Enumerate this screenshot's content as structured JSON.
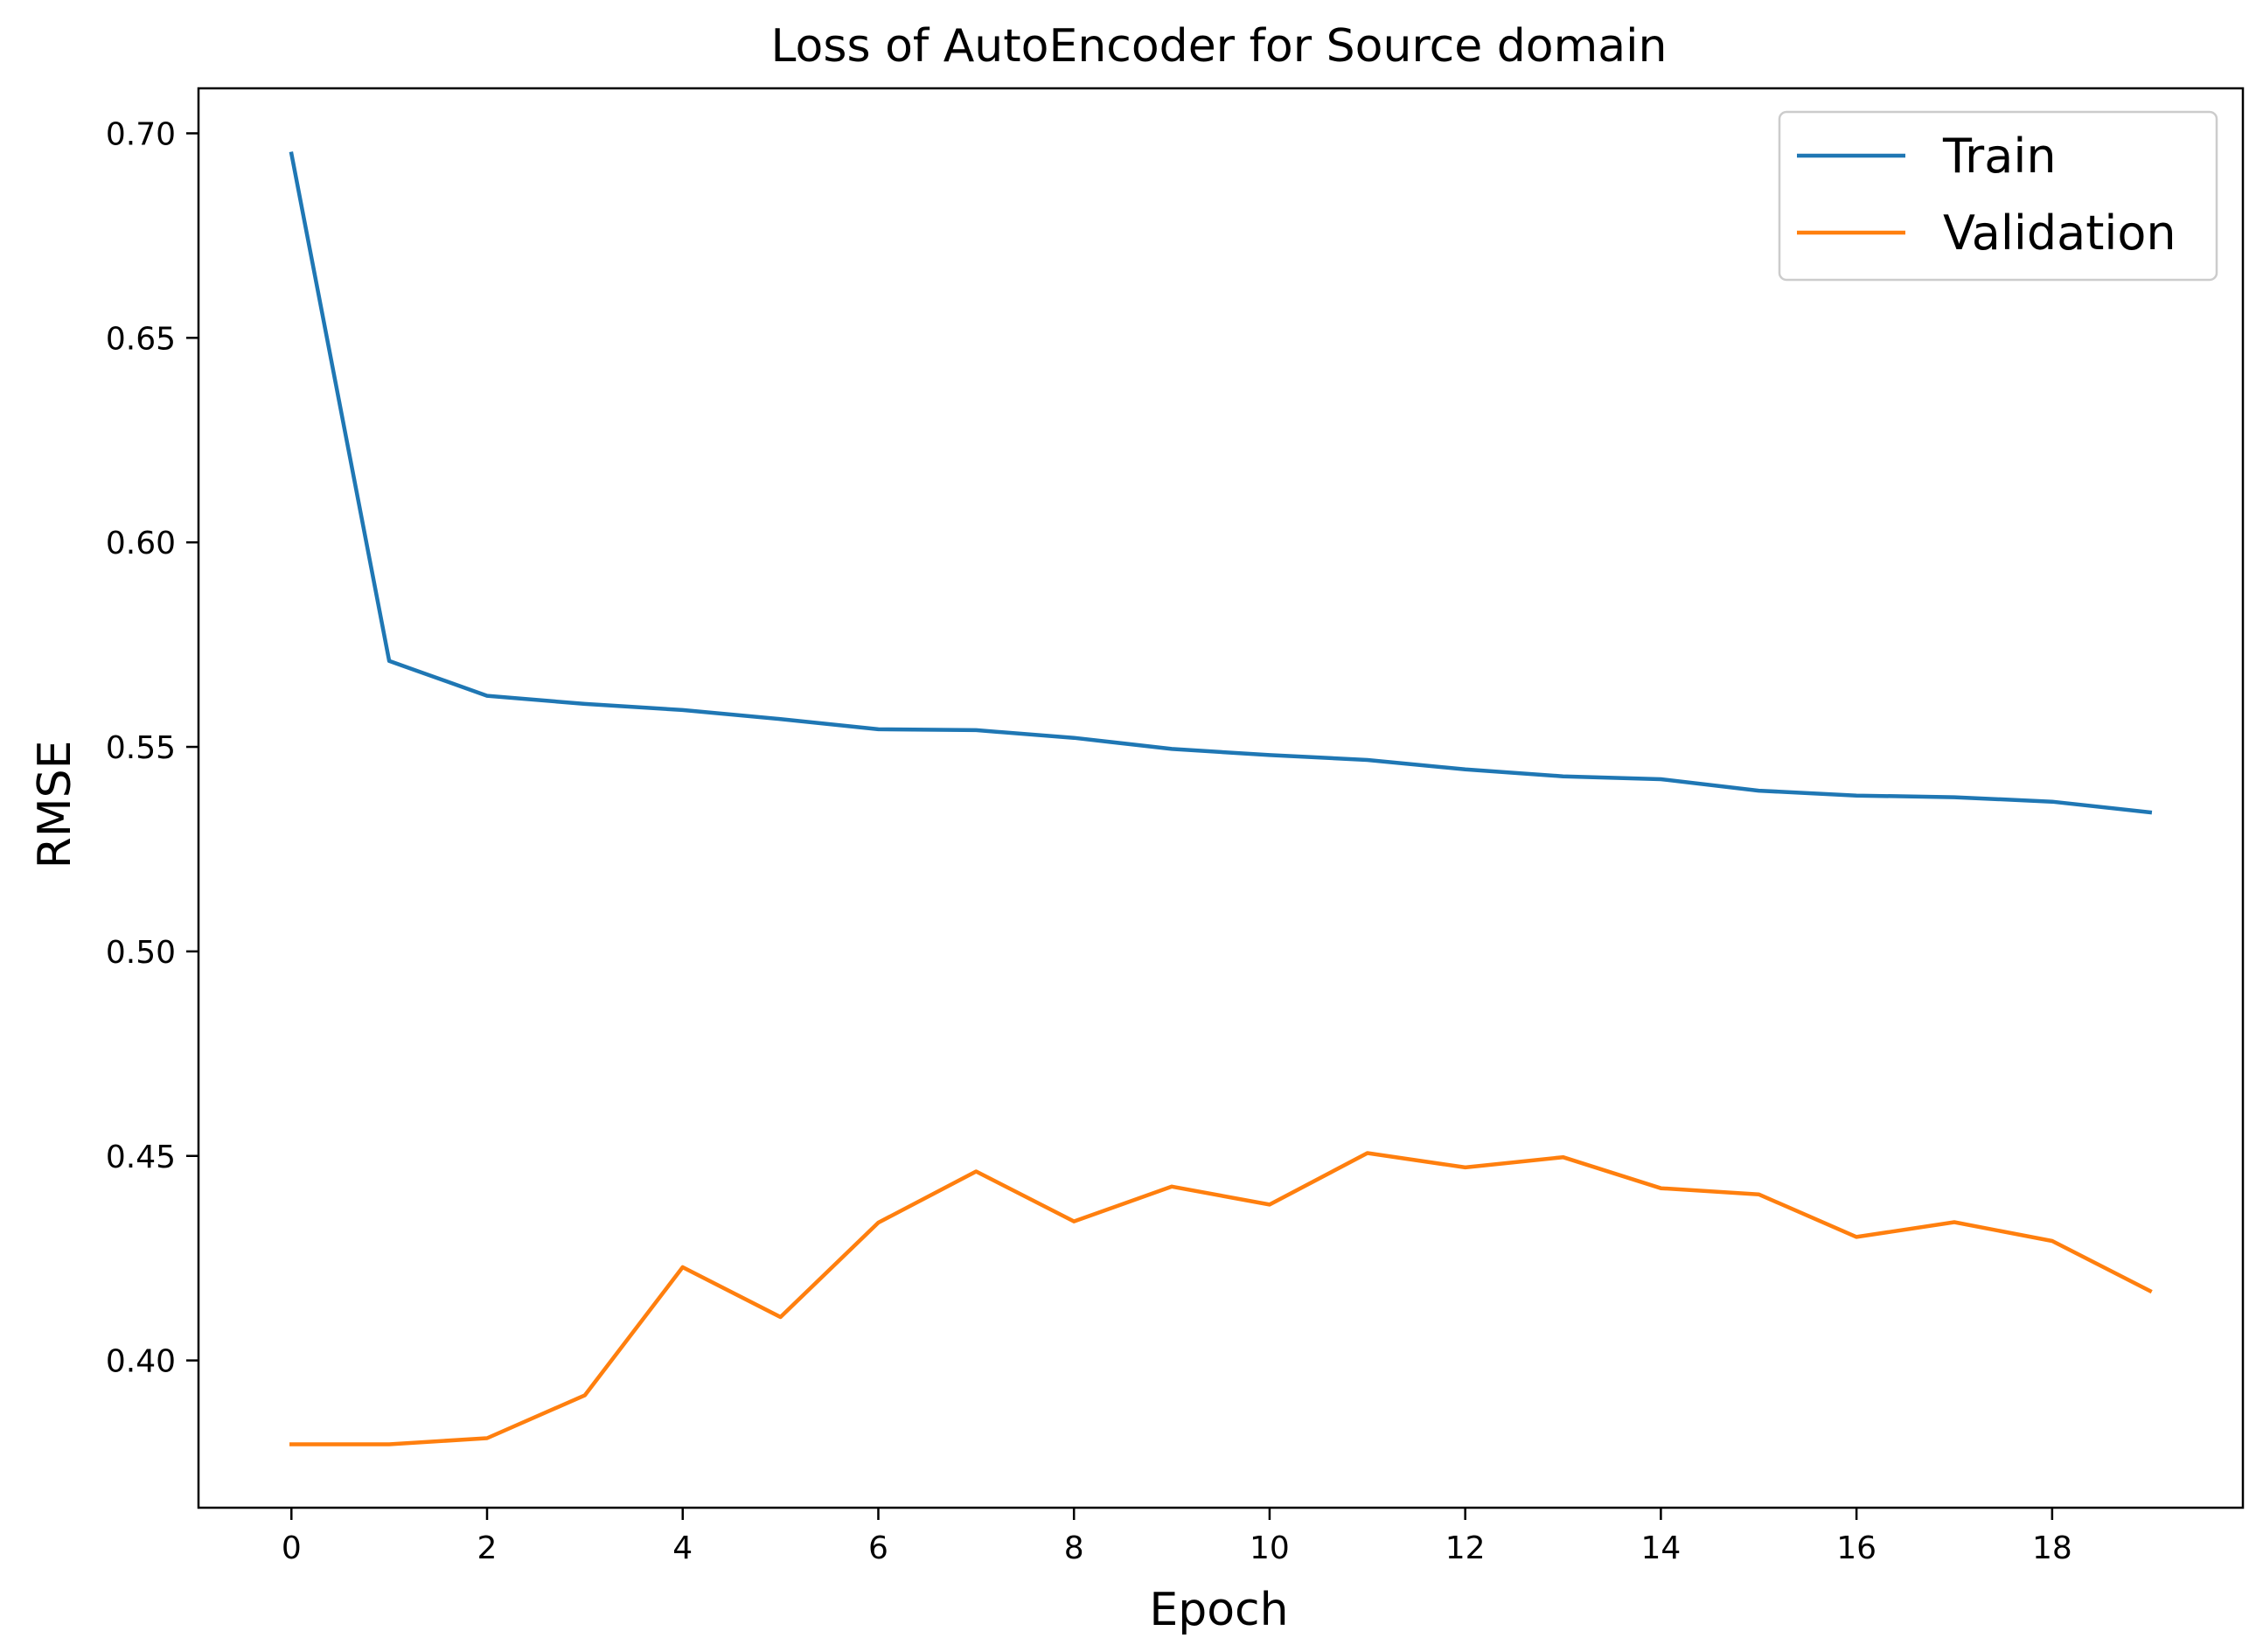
{
  "chart_data": {
    "type": "line",
    "title": "Loss of AutoEncoder for Source domain",
    "xlabel": "Epoch",
    "ylabel": "RMSE",
    "xlim": [
      -0.95,
      19.95
    ],
    "ylim": [
      0.364,
      0.711
    ],
    "xticks": [
      0,
      2,
      4,
      6,
      8,
      10,
      12,
      14,
      16,
      18
    ],
    "xtick_labels": [
      "0",
      "2",
      "4",
      "6",
      "8",
      "10",
      "12",
      "14",
      "16",
      "18"
    ],
    "yticks": [
      0.4,
      0.45,
      0.5,
      0.55,
      0.6,
      0.65,
      0.7
    ],
    "ytick_labels": [
      "0.40",
      "0.45",
      "0.50",
      "0.55",
      "0.60",
      "0.65",
      "0.70"
    ],
    "grid": false,
    "legend": "top-right",
    "x": [
      0,
      1,
      2,
      3,
      4,
      5,
      6,
      7,
      8,
      9,
      10,
      11,
      12,
      13,
      14,
      15,
      16,
      17,
      18,
      19
    ],
    "series": [
      {
        "name": "Train",
        "color": "#1f77b4",
        "values": [
          0.695,
          0.571,
          0.5625,
          0.5605,
          0.559,
          0.5568,
          0.5543,
          0.5541,
          0.5522,
          0.5495,
          0.548,
          0.5468,
          0.5445,
          0.5428,
          0.5421,
          0.5393,
          0.5381,
          0.5377,
          0.5366,
          0.534
        ]
      },
      {
        "name": "Validation",
        "color": "#ff7f0e",
        "values": [
          0.3795,
          0.3795,
          0.381,
          0.3915,
          0.4228,
          0.4106,
          0.4337,
          0.4462,
          0.434,
          0.4425,
          0.4381,
          0.4507,
          0.4472,
          0.4497,
          0.4421,
          0.4406,
          0.4302,
          0.4338,
          0.4292,
          0.417
        ]
      }
    ]
  }
}
